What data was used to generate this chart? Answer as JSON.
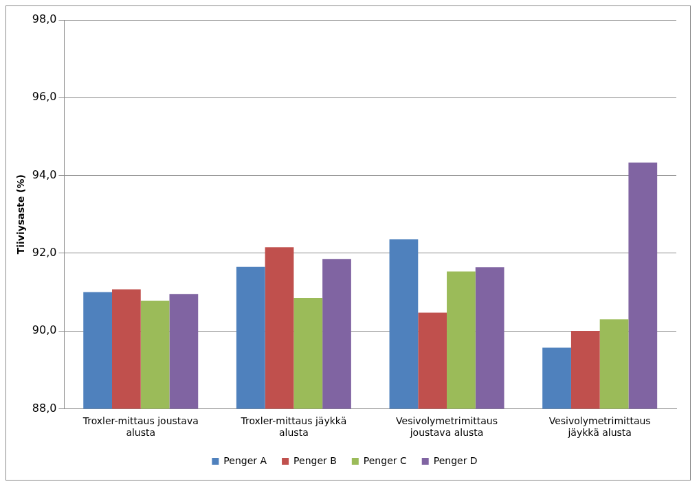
{
  "chart_data": {
    "type": "bar",
    "ylabel": "Tiiviysaste (%)",
    "categories": [
      "Troxler-mittaus joustava alusta",
      "Troxler-mittaus jäykkä alusta",
      "Vesivolymetrimittaus joustava alusta",
      "Vesivolymetrimittaus jäykkä alusta"
    ],
    "series": [
      {
        "name": "Penger A",
        "color": "#4f81bd",
        "values": [
          91.0,
          91.65,
          92.36,
          89.57
        ]
      },
      {
        "name": "Penger B",
        "color": "#c0504d",
        "values": [
          91.07,
          92.15,
          90.47,
          90.0
        ]
      },
      {
        "name": "Penger C",
        "color": "#9bbb59",
        "values": [
          90.78,
          90.85,
          91.53,
          90.3
        ]
      },
      {
        "name": "Penger D",
        "color": "#8064a2",
        "values": [
          90.95,
          91.85,
          91.64,
          94.33
        ]
      }
    ],
    "ylim": [
      88,
      98
    ],
    "yticks": [
      {
        "value": 88,
        "label": "88,0"
      },
      {
        "value": 90,
        "label": "90,0"
      },
      {
        "value": 92,
        "label": "92,0"
      },
      {
        "value": 94,
        "label": "94,0"
      },
      {
        "value": 96,
        "label": "96,0"
      },
      {
        "value": 98,
        "label": "98,0"
      }
    ],
    "grid": "y",
    "legend": "bottom"
  }
}
